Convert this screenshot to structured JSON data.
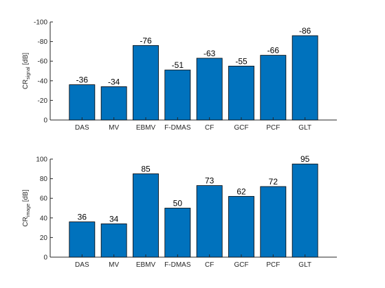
{
  "chart_data": [
    {
      "type": "bar",
      "categories": [
        "DAS",
        "MV",
        "EBMV",
        "F-DMAS",
        "CF",
        "GCF",
        "PCF",
        "GLT"
      ],
      "values": [
        -36,
        -34,
        -76,
        -51,
        -63,
        -55,
        -66,
        -86
      ],
      "data_labels": [
        "-36",
        "-34",
        "-76",
        "-51",
        "-63",
        "-55",
        "-66",
        "-86"
      ],
      "ylabel_main": "CR",
      "ylabel_sub": "signal",
      "ylabel_unit": "[dB]",
      "ylim": [
        0,
        -100
      ],
      "yticks": [
        0,
        -20,
        -40,
        -60,
        -80,
        -100
      ],
      "ytick_labels": [
        "0",
        "-20",
        "-40",
        "-60",
        "-80",
        "-100"
      ],
      "bar_color": "#0072BD",
      "grid": false,
      "legend": false
    },
    {
      "type": "bar",
      "categories": [
        "DAS",
        "MV",
        "EBMV",
        "F-DMAS",
        "CF",
        "GCF",
        "PCF",
        "GLT"
      ],
      "values": [
        36,
        34,
        85,
        50,
        73,
        62,
        72,
        95
      ],
      "data_labels": [
        "36",
        "34",
        "85",
        "50",
        "73",
        "62",
        "72",
        "95"
      ],
      "ylabel_main": "CR",
      "ylabel_sub": "image",
      "ylabel_unit": "[dB]",
      "ylim": [
        0,
        100
      ],
      "yticks": [
        0,
        20,
        40,
        60,
        80,
        100
      ],
      "ytick_labels": [
        "0",
        "20",
        "40",
        "60",
        "80",
        "100"
      ],
      "bar_color": "#0072BD",
      "grid": false,
      "legend": false
    }
  ]
}
